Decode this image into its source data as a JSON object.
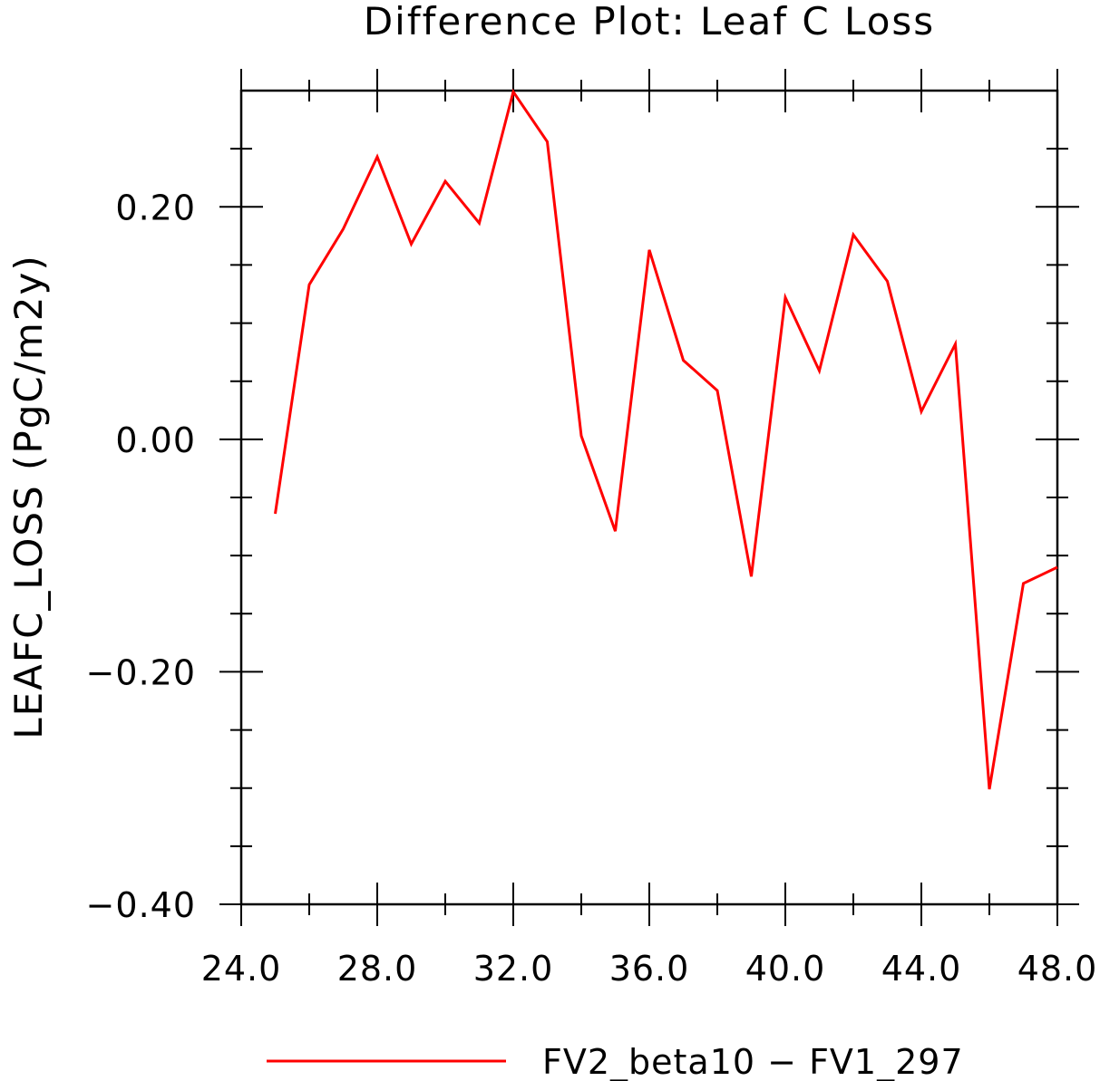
{
  "chart_data": {
    "type": "line",
    "title": "Difference Plot: Leaf C Loss",
    "xlabel": "",
    "ylabel": "LEAFC_LOSS  (PgC/m2y)",
    "xlim": [
      24.0,
      48.0
    ],
    "ylim": [
      -0.4,
      0.3
    ],
    "x_ticks": [
      24.0,
      28.0,
      32.0,
      36.0,
      40.0,
      44.0,
      48.0
    ],
    "x_tick_labels": [
      "24.0",
      "28.0",
      "32.0",
      "36.0",
      "40.0",
      "44.0",
      "48.0"
    ],
    "y_ticks": [
      -0.4,
      -0.2,
      0.0,
      0.2
    ],
    "y_tick_labels": [
      "−0.40",
      "−0.20",
      "0.00",
      "0.20"
    ],
    "x_minor_step": 2.0,
    "y_minor_step": 0.05,
    "grid": false,
    "legend_position": "bottom-center",
    "series": [
      {
        "name": "FV2_beta10 − FV1_297",
        "color": "#ff0000",
        "x": [
          25,
          26,
          27,
          28,
          29,
          30,
          31,
          32,
          33,
          34,
          35,
          36,
          37,
          38,
          39,
          40,
          41,
          42,
          43,
          44,
          45,
          46,
          47,
          48
        ],
        "values": [
          -0.064,
          0.133,
          0.181,
          0.243,
          0.168,
          0.222,
          0.186,
          0.299,
          0.256,
          0.003,
          -0.079,
          0.163,
          0.068,
          0.042,
          -0.118,
          0.122,
          0.059,
          0.176,
          0.136,
          0.024,
          0.082,
          -0.301,
          -0.124,
          -0.11
        ]
      }
    ]
  }
}
